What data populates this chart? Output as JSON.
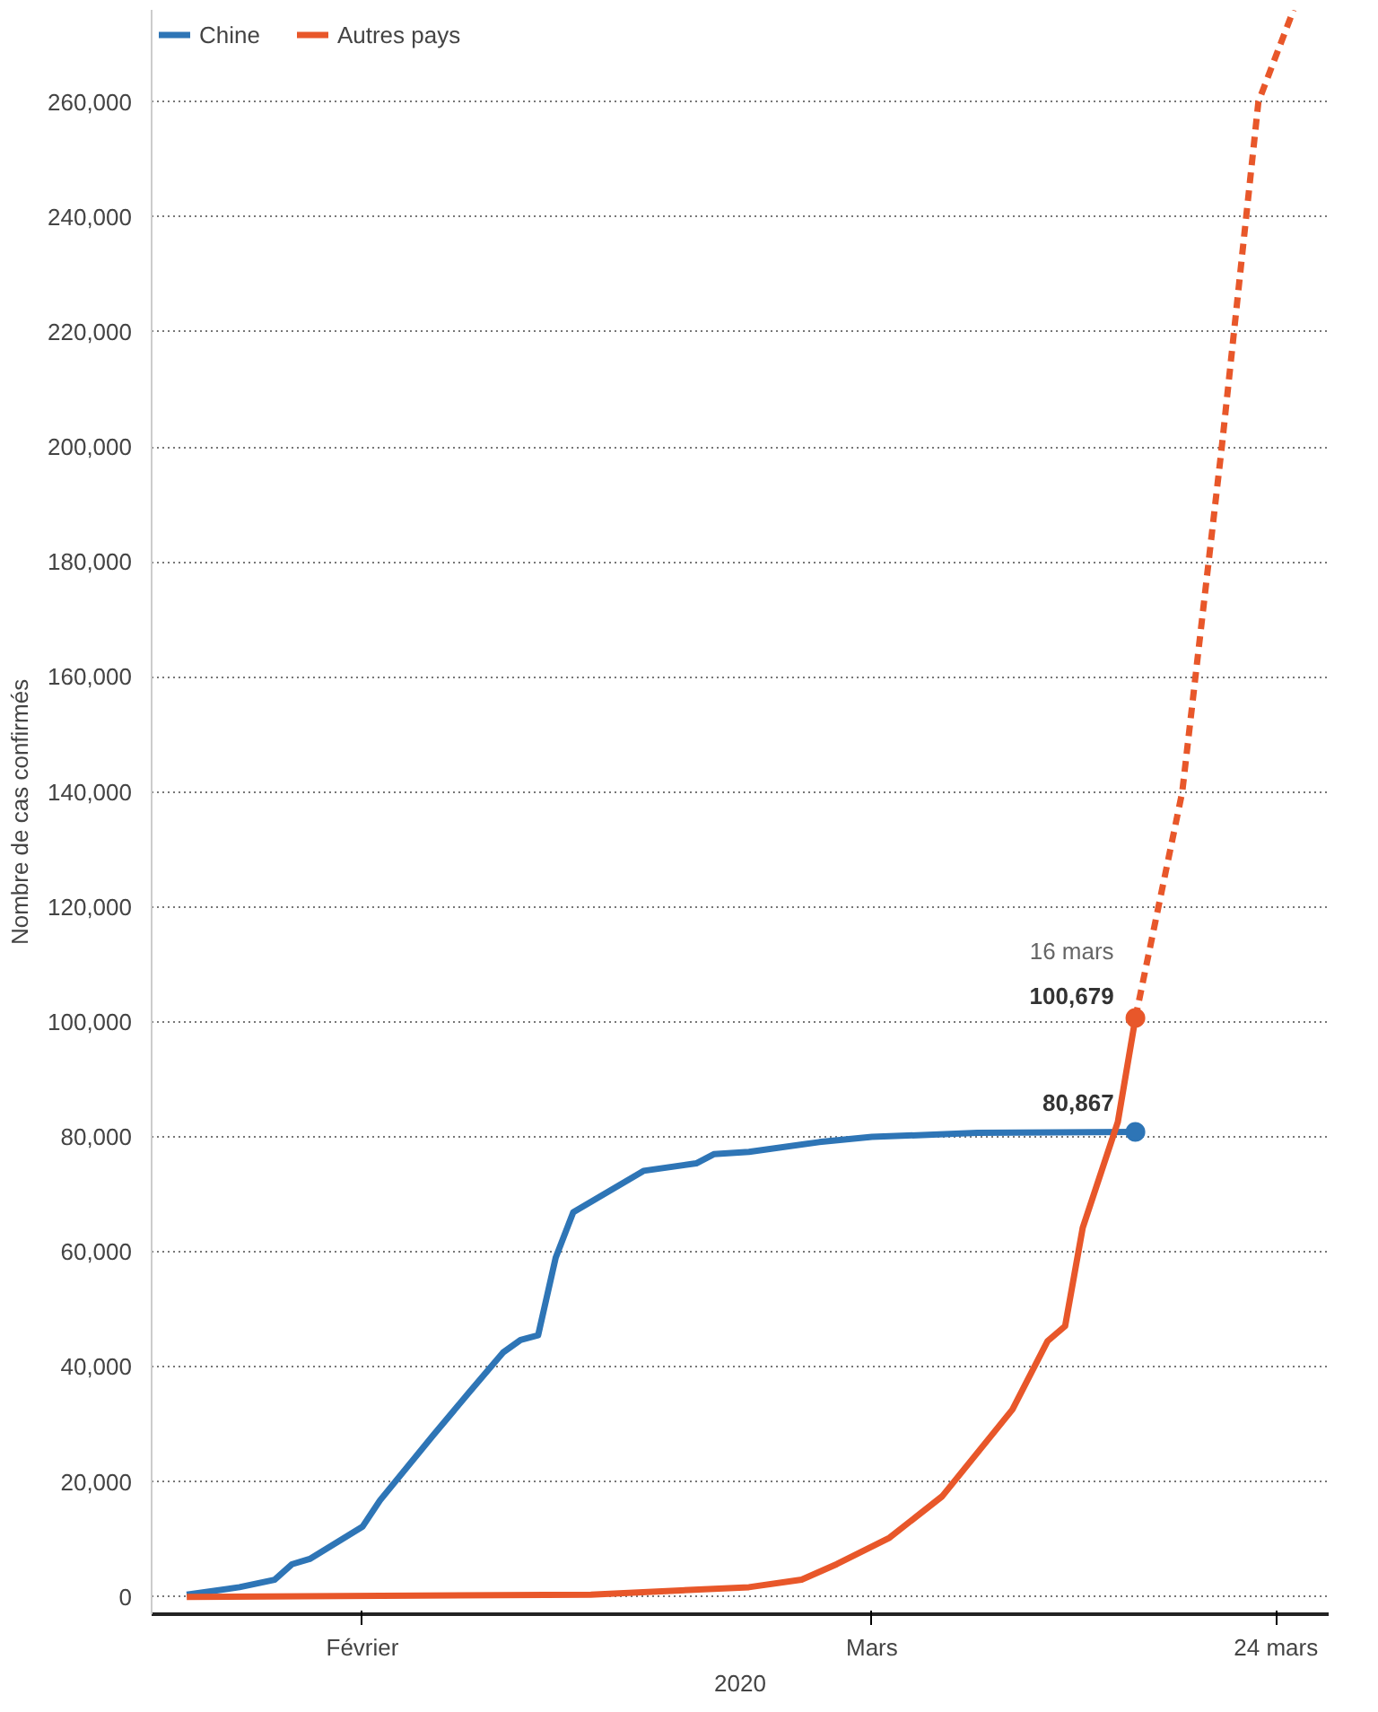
{
  "chart_data": {
    "type": "line",
    "xlabel": "2020",
    "ylabel": "Nombre de cas confirmés",
    "xlim": [
      "2020-01-20",
      "2020-03-27"
    ],
    "ylim": [
      -3000,
      276000
    ],
    "xticks": [
      {
        "value": "2020-02-01",
        "label": "Février"
      },
      {
        "value": "2020-03-01",
        "label": "Mars"
      },
      {
        "value": "2020-03-24",
        "label": "24 mars"
      }
    ],
    "yticks": [
      0,
      {
        "value": 20000,
        "label": "20,000"
      },
      {
        "value": 40000,
        "label": "40,000"
      },
      {
        "value": 60000,
        "label": "60,000"
      },
      {
        "value": 80000,
        "label": "80,000"
      },
      {
        "value": 100000,
        "label": "100,000"
      },
      {
        "value": 120000,
        "label": "120,000"
      },
      {
        "value": 140000,
        "label": "140,000"
      },
      {
        "value": 160000,
        "label": "160,000"
      },
      {
        "value": 180000,
        "label": "180,000"
      },
      {
        "value": 200000,
        "label": "200,000"
      },
      {
        "value": 220000,
        "label": "220,000"
      },
      {
        "value": 240000,
        "label": "240,000"
      },
      {
        "value": 260000,
        "label": "260,000"
      }
    ],
    "grid": "y",
    "legend": "top left",
    "marker": "none",
    "line_style": "solid",
    "series": [
      {
        "name": "Chine",
        "color": "#2e75b6",
        "x": [
          "2020-01-22",
          "2020-01-25",
          "2020-01-27",
          "2020-01-28",
          "2020-01-29",
          "2020-02-01",
          "2020-02-02",
          "2020-02-05",
          "2020-02-07",
          "2020-02-09",
          "2020-02-10",
          "2020-02-11",
          "2020-02-12",
          "2020-02-13",
          "2020-02-17",
          "2020-02-20",
          "2020-02-21",
          "2020-02-23",
          "2020-02-27",
          "2020-03-01",
          "2020-03-07",
          "2020-03-16"
        ],
        "values": [
          400,
          1700,
          3000,
          5700,
          6600,
          12200,
          16800,
          28000,
          35300,
          42500,
          44700,
          45500,
          59000,
          66900,
          74100,
          75400,
          77000,
          77400,
          79100,
          80000,
          80700,
          80867
        ]
      },
      {
        "name": "Autres pays",
        "color": "#e8572a",
        "x": [
          "2020-01-22",
          "2020-02-14",
          "2020-02-23",
          "2020-02-26",
          "2020-02-28",
          "2020-03-02",
          "2020-03-05",
          "2020-03-09",
          "2020-03-11",
          "2020-03-12",
          "2020-03-13",
          "2020-03-15",
          "2020-03-16"
        ],
        "values": [
          0,
          400,
          1700,
          3000,
          5700,
          10300,
          17500,
          32600,
          44500,
          47100,
          64200,
          82600,
          100679
        ]
      },
      {
        "type": "line",
        "line_style": "dashed",
        "color": "#e8572a",
        "x": [
          "2020-03-16",
          "2020-03-18T16:00",
          "2020-03-20T22:00",
          "2020-03-23",
          "2020-03-25"
        ],
        "values": [
          100679,
          140000,
          200000,
          260000,
          276000
        ]
      },
      {
        "type": "scatter",
        "marker": "circle",
        "color": "#2e75b6",
        "x": [
          "2020-03-16"
        ],
        "values": [
          80867
        ]
      },
      {
        "type": "scatter",
        "marker": "circle",
        "color": "#e8572a",
        "x": [
          "2020-03-16"
        ],
        "values": [
          100679
        ]
      }
    ],
    "annotations": [
      {
        "text": "80,867",
        "x": "2020-03-16",
        "y": 80867
      },
      {
        "text": "100,679",
        "x": "2020-03-16",
        "y": 100679
      },
      {
        "text": "16 mars",
        "x": "2020-03-16",
        "y": 100679
      }
    ]
  }
}
